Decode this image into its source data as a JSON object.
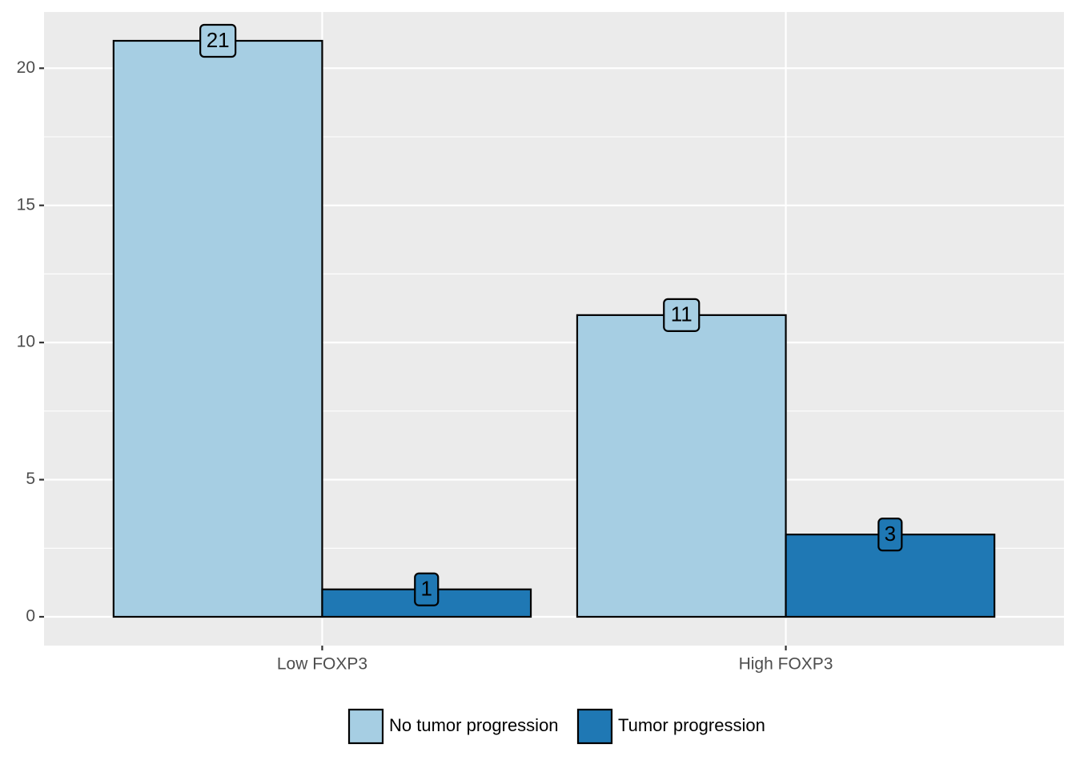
{
  "chart_data": {
    "type": "bar",
    "categories": [
      "Low FOXP3",
      "High FOXP3"
    ],
    "series": [
      {
        "name": "No tumor progression",
        "values": [
          21,
          11
        ],
        "color": "#a6cee3"
      },
      {
        "name": "Tumor progression",
        "values": [
          1,
          3
        ],
        "color": "#1f78b4"
      }
    ],
    "title": "",
    "xlabel": "",
    "ylabel": "",
    "ylim": [
      -1.05,
      22.05
    ],
    "yticks": [
      0,
      5,
      10,
      15,
      20
    ],
    "ytick_labels": [
      "0",
      "5",
      "10",
      "15",
      "20"
    ],
    "grid": true,
    "legend_position": "bottom",
    "panel_background": "#ebebeb"
  }
}
